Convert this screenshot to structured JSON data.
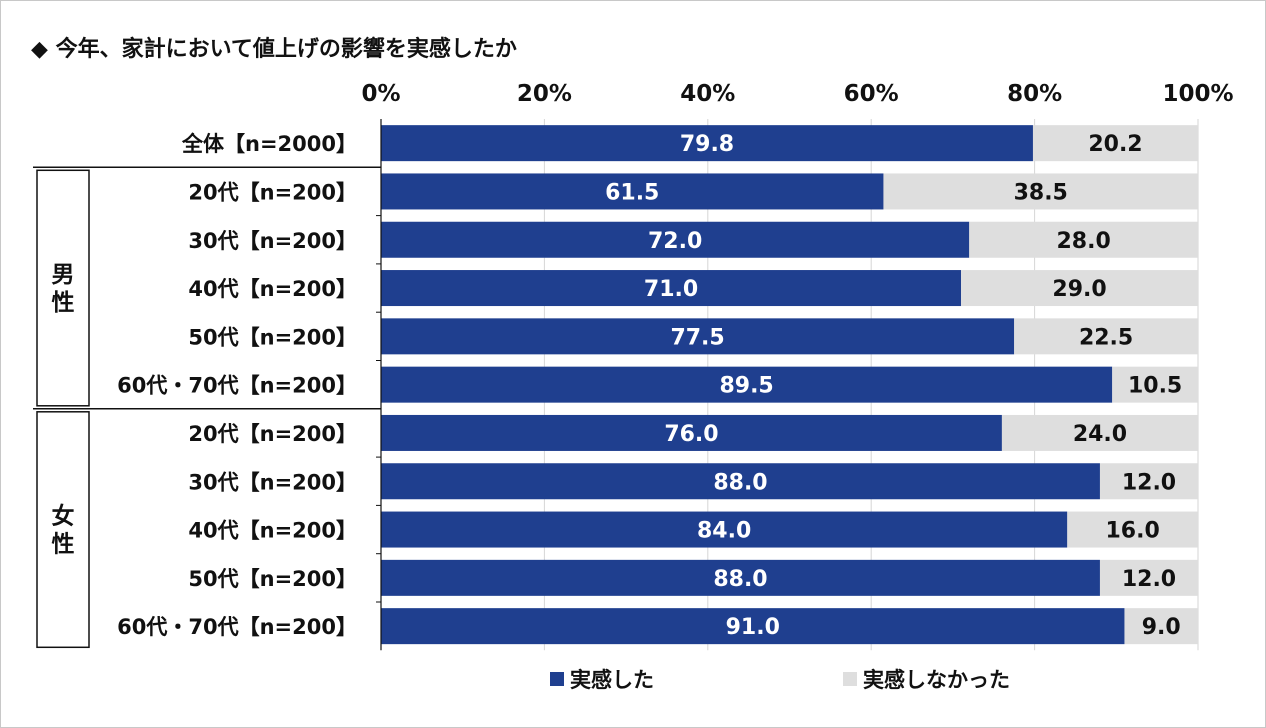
{
  "title": "◆ 今年、家計において値上げの影響を実感したか",
  "colors": {
    "felt": "#1f3f8f",
    "not_felt": "#dedede"
  },
  "chart_data": {
    "type": "bar",
    "orientation": "horizontal",
    "stacked": true,
    "xlim": [
      0,
      100
    ],
    "xticks": [
      "0%",
      "20%",
      "40%",
      "60%",
      "80%",
      "100%"
    ],
    "groups": [
      {
        "label": "男性",
        "from": 1,
        "to": 5
      },
      {
        "label": "女性",
        "from": 6,
        "to": 10
      }
    ],
    "categories": [
      "全体【n=2000】",
      "20代【n=200】",
      "30代【n=200】",
      "40代【n=200】",
      "50代【n=200】",
      "60代・70代【n=200】",
      "20代【n=200】",
      "30代【n=200】",
      "40代【n=200】",
      "50代【n=200】",
      "60代・70代【n=200】"
    ],
    "series": [
      {
        "name": "実感した",
        "color": "#1f3f8f",
        "values": [
          79.8,
          61.5,
          72.0,
          71.0,
          77.5,
          89.5,
          76.0,
          88.0,
          84.0,
          88.0,
          91.0
        ]
      },
      {
        "name": "実感しなかった",
        "color": "#dedede",
        "values": [
          20.2,
          38.5,
          28.0,
          29.0,
          22.5,
          10.5,
          24.0,
          12.0,
          16.0,
          12.0,
          9.0
        ]
      }
    ],
    "legend": "bottom"
  }
}
